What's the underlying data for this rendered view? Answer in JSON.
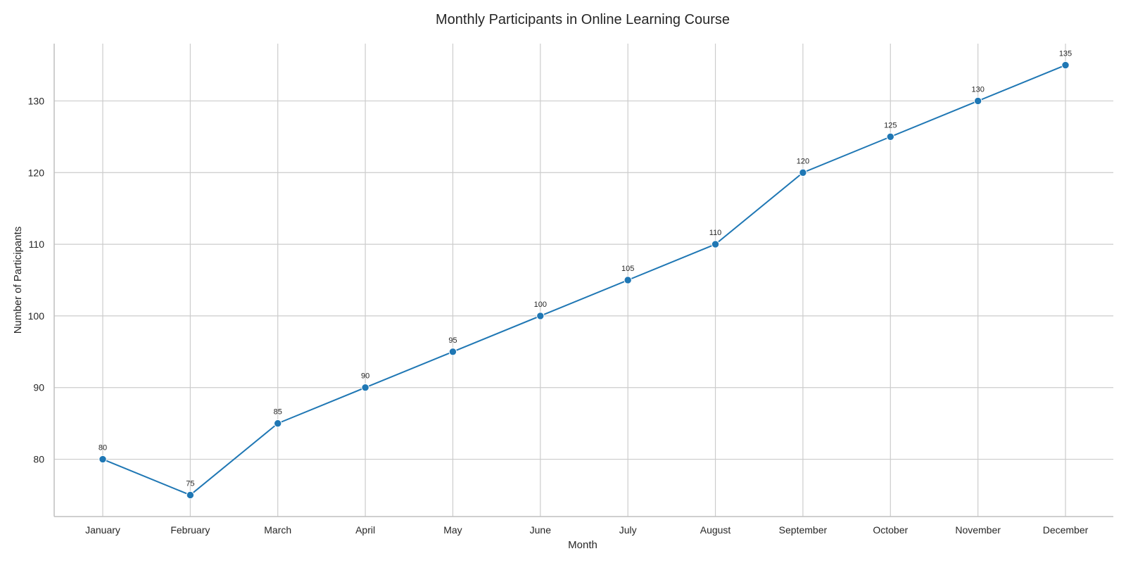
{
  "chart_data": {
    "type": "line",
    "title": "Monthly Participants in Online Learning Course",
    "xlabel": "Month",
    "ylabel": "Number of Participants",
    "categories": [
      "January",
      "February",
      "March",
      "April",
      "May",
      "June",
      "July",
      "August",
      "September",
      "October",
      "November",
      "December"
    ],
    "series": [
      {
        "values": [
          80,
          75,
          85,
          90,
          95,
          100,
          105,
          110,
          120,
          125,
          130,
          135
        ]
      }
    ],
    "ylim": [
      72,
      138
    ],
    "yticks": [
      80,
      90,
      100,
      110,
      120,
      130
    ],
    "grid": true,
    "markers": true,
    "data_labels": true,
    "line_color": "#1f77b4",
    "grid_color": "#cccccc",
    "axis_color": "#bfbfbf"
  }
}
